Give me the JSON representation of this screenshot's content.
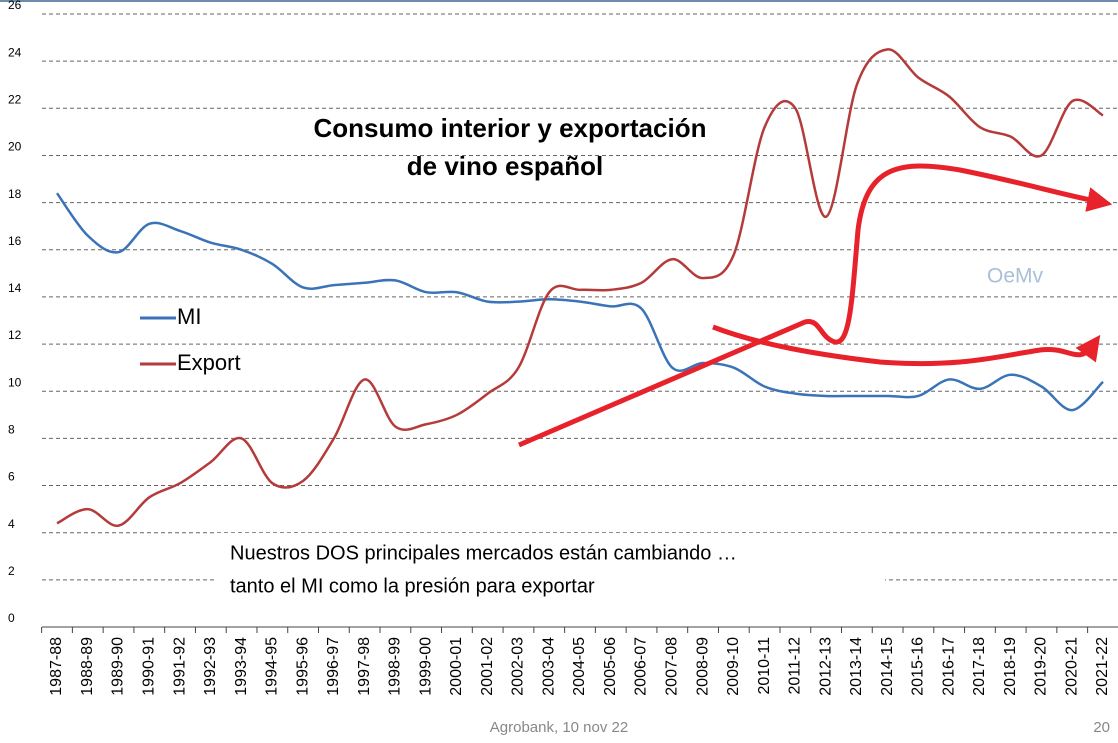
{
  "chart_data": {
    "type": "line",
    "title": [
      "Consumo interior y exportación",
      "de vino español"
    ],
    "categories": [
      "1987-88",
      "1988-89",
      "1989-90",
      "1990-91",
      "1991-92",
      "1992-93",
      "1993-94",
      "1994-95",
      "1995-96",
      "1996-97",
      "1997-98",
      "1998-99",
      "1999-00",
      "2000-01",
      "2001-02",
      "2002-03",
      "2003-04",
      "2004-05",
      "2005-06",
      "2006-07",
      "2007-08",
      "2008-09",
      "2009-10",
      "2010-11",
      "2011-12",
      "2012-13",
      "2013-14",
      "2014-15",
      "2015-16",
      "2016-17",
      "2017-18",
      "2018-19",
      "2019-20",
      "2020-21",
      "2021-22"
    ],
    "series": [
      {
        "name": "MI",
        "color": "#3a73b8",
        "values": [
          18.4,
          16.6,
          15.9,
          17.1,
          16.8,
          16.3,
          16.0,
          15.4,
          14.4,
          14.5,
          14.6,
          14.7,
          14.2,
          14.2,
          13.8,
          13.8,
          13.9,
          13.8,
          13.6,
          13.5,
          11.0,
          11.2,
          11.0,
          10.2,
          9.9,
          9.8,
          9.8,
          9.8,
          9.8,
          10.5,
          10.1,
          10.7,
          10.2,
          9.2,
          10.4
        ]
      },
      {
        "name": "Export",
        "color": "#b53a3a",
        "values": [
          4.4,
          5.0,
          4.3,
          5.5,
          6.1,
          7.0,
          8.0,
          6.1,
          6.2,
          8.0,
          10.5,
          8.5,
          8.6,
          9.0,
          9.9,
          11.0,
          14.2,
          14.3,
          14.3,
          14.6,
          15.6,
          14.8,
          15.8,
          21.2,
          22.0,
          17.4,
          23.0,
          24.5,
          23.3,
          22.5,
          21.2,
          20.8,
          20.0,
          22.3,
          21.7
        ]
      }
    ],
    "ylim": [
      0,
      26
    ],
    "yticks": [
      0,
      2,
      4,
      6,
      8,
      10,
      12,
      14,
      16,
      18,
      20,
      22,
      24,
      26
    ],
    "grid": true,
    "annotations": {
      "watermark": "OeMv",
      "note": [
        "Nuestros DOS principales mercados están cambiando …",
        "tanto el MI como la presión para exportar"
      ]
    }
  },
  "footer": {
    "source": "Agrobank, 10 nov 22",
    "page": "20"
  }
}
